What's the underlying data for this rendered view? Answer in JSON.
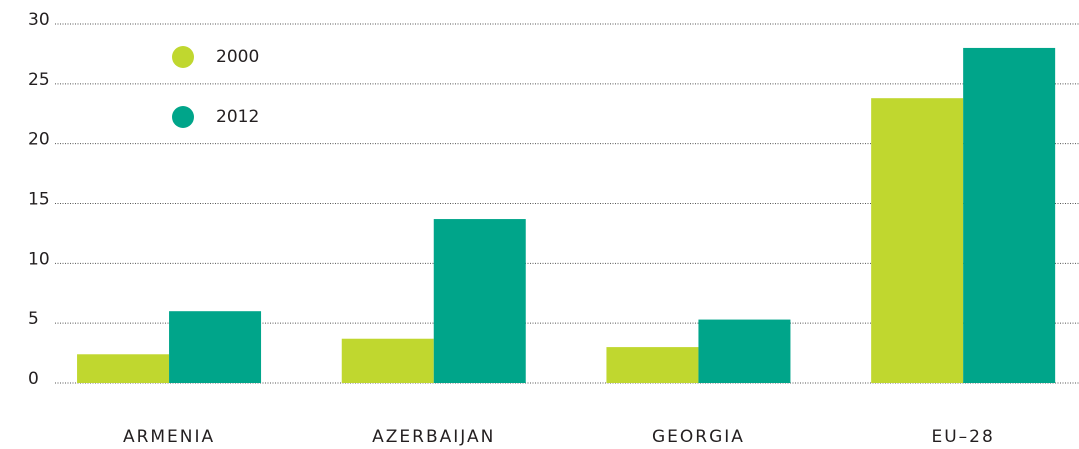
{
  "chart_data": {
    "type": "bar",
    "categories": [
      "ARMENIA",
      "AZERBAIJAN",
      "GEORGIA",
      "EU–28"
    ],
    "series": [
      {
        "name": "2000",
        "color": "#c0d72f",
        "values": [
          2.4,
          3.7,
          3.0,
          23.8
        ]
      },
      {
        "name": "2012",
        "color": "#00a58a",
        "values": [
          6.0,
          13.7,
          5.3,
          28.0
        ]
      }
    ],
    "ylim": [
      0,
      30
    ],
    "yticks": [
      0,
      5,
      10,
      15,
      20,
      25,
      30
    ],
    "grid": true,
    "legend": "top-left"
  }
}
